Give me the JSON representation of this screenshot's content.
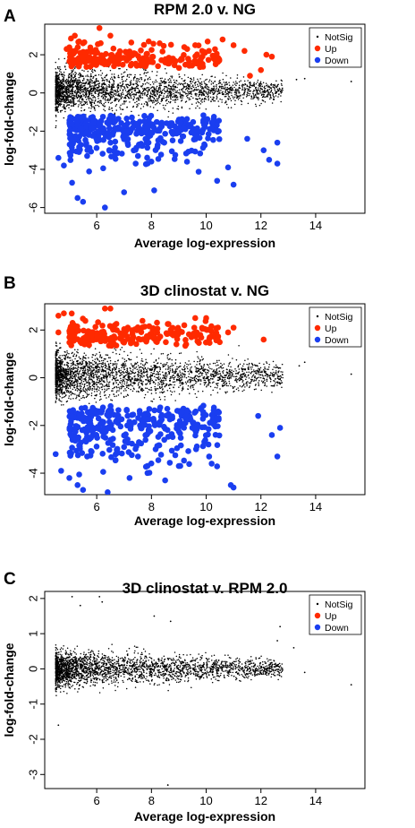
{
  "panels": [
    {
      "letter": "A"
    },
    {
      "letter": "B"
    },
    {
      "letter": "C"
    }
  ],
  "colors": {
    "notsig": "#000000",
    "up": "#ff2a00",
    "down": "#1a3ef0"
  },
  "chart_data": [
    {
      "type": "scatter",
      "title": "RPM 2.0 v. NG",
      "xlabel": "Average log-expression",
      "ylabel": "log-fold-change",
      "xlim": [
        4.1,
        15.8
      ],
      "ylim": [
        -6.3,
        3.6
      ],
      "x_ticks": [
        6,
        8,
        10,
        12,
        14
      ],
      "y_ticks": [
        -6,
        -4,
        -2,
        0,
        2
      ],
      "legend": {
        "position": "top-right",
        "entries": [
          "NotSig",
          "Up",
          "Down"
        ]
      },
      "series": [
        {
          "name": "NotSig",
          "cloud": {
            "center": 0.1,
            "spread": 0.55
          },
          "extra_points": [
            [
              13.3,
              0.7
            ],
            [
              13.6,
              0.75
            ],
            [
              15.3,
              0.6
            ]
          ]
        },
        {
          "name": "Up",
          "points": [
            [
              4.9,
              2.3
            ],
            [
              5.2,
              3.0
            ],
            [
              5.5,
              2.6
            ],
            [
              6.1,
              3.4
            ],
            [
              6.5,
              3.0
            ],
            [
              7.9,
              2.7
            ],
            [
              8.3,
              2.6
            ],
            [
              9.2,
              2.4
            ],
            [
              9.6,
              2.5
            ],
            [
              10.1,
              2.2
            ],
            [
              10.6,
              2.8
            ],
            [
              11.0,
              2.5
            ],
            [
              11.4,
              2.2
            ],
            [
              11.6,
              0.9
            ],
            [
              12.0,
              1.2
            ],
            [
              12.2,
              2.0
            ],
            [
              12.4,
              1.9
            ]
          ]
        },
        {
          "name": "Down",
          "points": [
            [
              4.6,
              -3.4
            ],
            [
              4.8,
              -3.8
            ],
            [
              5.1,
              -4.7
            ],
            [
              5.3,
              -5.5
            ],
            [
              5.5,
              -5.7
            ],
            [
              6.3,
              -6.0
            ],
            [
              7.0,
              -5.2
            ],
            [
              8.1,
              -5.1
            ],
            [
              9.3,
              -3.6
            ],
            [
              10.4,
              -4.6
            ],
            [
              10.8,
              -3.9
            ],
            [
              11.0,
              -4.8
            ],
            [
              11.5,
              -2.4
            ],
            [
              12.1,
              -3.0
            ],
            [
              12.3,
              -3.5
            ],
            [
              12.6,
              -2.6
            ],
            [
              12.6,
              -3.7
            ]
          ]
        }
      ]
    },
    {
      "type": "scatter",
      "title": "3D clinostat v. NG",
      "xlabel": "Average log-expression",
      "ylabel": "log-fold-change",
      "xlim": [
        4.1,
        15.8
      ],
      "ylim": [
        -4.9,
        3.1
      ],
      "x_ticks": [
        6,
        8,
        10,
        12,
        14
      ],
      "y_ticks": [
        -4,
        -2,
        0,
        2
      ],
      "legend": {
        "position": "top-right",
        "entries": [
          "NotSig",
          "Up",
          "Down"
        ]
      },
      "series": [
        {
          "name": "NotSig",
          "cloud": {
            "center": 0.1,
            "spread": 0.5
          },
          "extra_points": [
            [
              13.4,
              0.5
            ],
            [
              13.6,
              0.65
            ],
            [
              15.3,
              0.15
            ]
          ]
        },
        {
          "name": "Up",
          "points": [
            [
              4.6,
              2.6
            ],
            [
              4.8,
              2.7
            ],
            [
              4.6,
              1.9
            ],
            [
              5.2,
              1.6
            ],
            [
              6.3,
              2.9
            ],
            [
              6.5,
              2.9
            ],
            [
              9.2,
              2.2
            ],
            [
              9.6,
              2.5
            ],
            [
              10.0,
              2.5
            ],
            [
              10.4,
              1.6
            ],
            [
              10.8,
              1.9
            ],
            [
              11.0,
              2.1
            ],
            [
              12.1,
              1.6
            ]
          ]
        },
        {
          "name": "Down",
          "points": [
            [
              4.5,
              -3.2
            ],
            [
              4.7,
              -3.9
            ],
            [
              5.0,
              -4.2
            ],
            [
              5.3,
              -4.5
            ],
            [
              5.5,
              -4.7
            ],
            [
              6.4,
              -4.8
            ],
            [
              7.2,
              -4.2
            ],
            [
              8.5,
              -4.3
            ],
            [
              9.0,
              -3.7
            ],
            [
              10.2,
              -3.6
            ],
            [
              10.9,
              -4.5
            ],
            [
              11.0,
              -4.6
            ],
            [
              11.9,
              -1.6
            ],
            [
              12.4,
              -2.4
            ],
            [
              12.6,
              -3.3
            ],
            [
              12.7,
              -2.1
            ]
          ]
        }
      ]
    },
    {
      "type": "scatter",
      "title": "3D clinostat v. RPM 2.0",
      "xlabel": "Average log-expression",
      "ylabel": "log-fold-change",
      "xlim": [
        4.1,
        15.8
      ],
      "ylim": [
        -3.4,
        2.2
      ],
      "x_ticks": [
        6,
        8,
        10,
        12,
        14
      ],
      "y_ticks": [
        -3,
        -2,
        -1,
        0,
        1,
        2
      ],
      "legend": {
        "position": "top-right",
        "entries": [
          "NotSig",
          "Up",
          "Down"
        ]
      },
      "series": [
        {
          "name": "NotSig",
          "cloud": {
            "center": 0.0,
            "spread": 0.25
          },
          "extra_points": [
            [
              5.1,
              2.05
            ],
            [
              5.4,
              1.8
            ],
            [
              6.1,
              2.05
            ],
            [
              6.2,
              1.9
            ],
            [
              8.1,
              1.5
            ],
            [
              8.7,
              1.35
            ],
            [
              12.7,
              1.2
            ],
            [
              12.6,
              0.8
            ],
            [
              13.2,
              0.6
            ],
            [
              13.6,
              -0.1
            ],
            [
              15.3,
              -0.45
            ],
            [
              4.6,
              -1.6
            ],
            [
              8.6,
              -3.3
            ]
          ]
        },
        {
          "name": "Up",
          "points": []
        },
        {
          "name": "Down",
          "points": []
        }
      ]
    }
  ]
}
